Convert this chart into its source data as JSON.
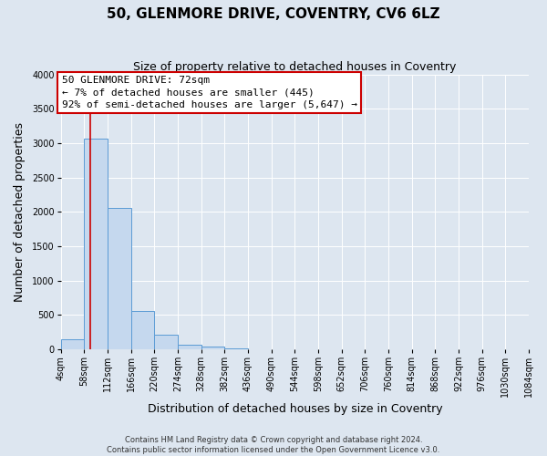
{
  "title": "50, GLENMORE DRIVE, COVENTRY, CV6 6LZ",
  "subtitle": "Size of property relative to detached houses in Coventry",
  "xlabel": "Distribution of detached houses by size in Coventry",
  "ylabel": "Number of detached properties",
  "bin_edges": [
    4,
    58,
    112,
    166,
    220,
    274,
    328,
    382,
    436,
    490,
    544,
    598,
    652,
    706,
    760,
    814,
    868,
    922,
    976,
    1030,
    1084
  ],
  "bar_heights": [
    150,
    3070,
    2060,
    560,
    205,
    65,
    40,
    15,
    0,
    0,
    0,
    0,
    0,
    0,
    0,
    0,
    0,
    0,
    0,
    0
  ],
  "bar_color": "#c5d8ee",
  "bar_edge_color": "#5b9bd5",
  "property_line_x": 72,
  "property_line_color": "#cc0000",
  "annotation_text": "50 GLENMORE DRIVE: 72sqm\n← 7% of detached houses are smaller (445)\n92% of semi-detached houses are larger (5,647) →",
  "annotation_box_color": "#ffffff",
  "annotation_box_edge": "#cc0000",
  "ylim": [
    0,
    4000
  ],
  "yticks": [
    0,
    500,
    1000,
    1500,
    2000,
    2500,
    3000,
    3500,
    4000
  ],
  "background_color": "#dde6f0",
  "footer_line1": "Contains HM Land Registry data © Crown copyright and database right 2024.",
  "footer_line2": "Contains public sector information licensed under the Open Government Licence v3.0.",
  "title_fontsize": 11,
  "subtitle_fontsize": 9,
  "axis_label_fontsize": 9,
  "tick_fontsize": 7,
  "annotation_fontsize": 8,
  "footer_fontsize": 6
}
